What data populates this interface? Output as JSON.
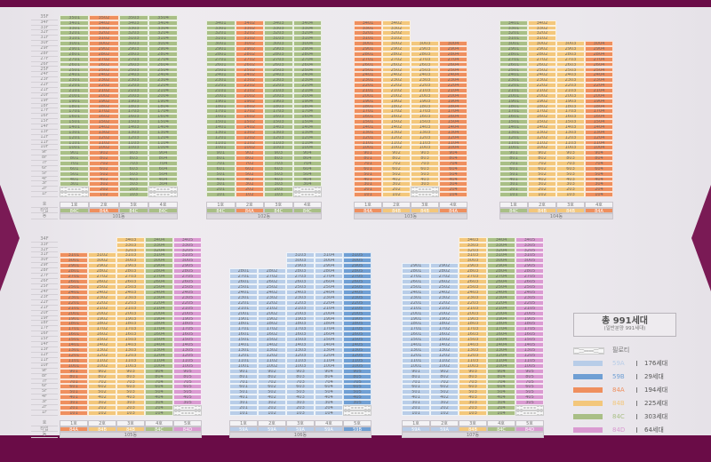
{
  "row_labels": {
    "ho": "호",
    "type": "타입",
    "dong": "동"
  },
  "floor_suffix": "F",
  "unit_suffix": "호",
  "colors": {
    "59A": "#b8cde8",
    "59B": "#6f9fd4",
    "84A": "#ef8f5e",
    "84B": "#f3c77b",
    "84C": "#a9bf86",
    "84D": "#da9ad1",
    "frame": "#6a0c47"
  },
  "buildings": [
    {
      "name": "101동",
      "floor_labels": true,
      "lines": [
        {
          "type": "84C",
          "top_floor": 35,
          "pilotis": [
            1,
            2
          ]
        },
        {
          "type": "84A",
          "top_floor": 35,
          "pilotis": []
        },
        {
          "type": "84C",
          "top_floor": 35,
          "pilotis": []
        },
        {
          "type": "84C",
          "top_floor": 35,
          "pilotis": [
            1,
            2
          ]
        }
      ]
    },
    {
      "name": "102동",
      "floor_labels": false,
      "lines": [
        {
          "type": "84C",
          "top_floor": 34,
          "pilotis": []
        },
        {
          "type": "84A",
          "top_floor": 34,
          "pilotis": []
        },
        {
          "type": "84C",
          "top_floor": 34,
          "pilotis": []
        },
        {
          "type": "84C",
          "top_floor": 34,
          "pilotis": [
            1,
            2
          ]
        }
      ]
    },
    {
      "name": "103동",
      "floor_labels": false,
      "lines": [
        {
          "type": "84A",
          "top_floor": 34,
          "pilotis": []
        },
        {
          "type": "84B",
          "top_floor": 34,
          "pilotis": []
        },
        {
          "type": "84B",
          "top_floor": 30,
          "pilotis": [
            1,
            2
          ]
        },
        {
          "type": "84A",
          "top_floor": 30,
          "pilotis": []
        }
      ]
    },
    {
      "name": "104동",
      "floor_labels": false,
      "lines": [
        {
          "type": "84C",
          "top_floor": 34,
          "pilotis": []
        },
        {
          "type": "84B",
          "top_floor": 34,
          "pilotis": []
        },
        {
          "type": "84B",
          "top_floor": 30,
          "pilotis": []
        },
        {
          "type": "84A",
          "top_floor": 30,
          "pilotis": []
        }
      ]
    },
    {
      "name": "105동",
      "floor_labels": true,
      "lines": [
        {
          "type": "84A",
          "top_floor": 31,
          "pilotis": []
        },
        {
          "type": "84B",
          "top_floor": 31,
          "pilotis": []
        },
        {
          "type": "84B",
          "top_floor": 34,
          "pilotis": []
        },
        {
          "type": "84C",
          "top_floor": 34,
          "pilotis": []
        },
        {
          "type": "84D",
          "top_floor": 34,
          "pilotis": [
            1,
            2
          ]
        }
      ]
    },
    {
      "name": "106동",
      "floor_labels": false,
      "lines": [
        {
          "type": "59A",
          "top_floor": 28,
          "pilotis": []
        },
        {
          "type": "59A",
          "top_floor": 28,
          "pilotis": []
        },
        {
          "type": "59A",
          "top_floor": 31,
          "pilotis": []
        },
        {
          "type": "59A",
          "top_floor": 31,
          "pilotis": []
        },
        {
          "type": "59B",
          "top_floor": 31,
          "pilotis": [
            1,
            2
          ]
        }
      ]
    },
    {
      "name": "107동",
      "floor_labels": false,
      "lines": [
        {
          "type": "59A",
          "top_floor": 29,
          "pilotis": []
        },
        {
          "type": "59A",
          "top_floor": 29,
          "pilotis": []
        },
        {
          "type": "84B",
          "top_floor": 34,
          "pilotis": []
        },
        {
          "type": "84C",
          "top_floor": 34,
          "pilotis": []
        },
        {
          "type": "84D",
          "top_floor": 34,
          "pilotis": [
            1,
            2
          ]
        }
      ]
    }
  ],
  "summary": {
    "title": "총 991세대",
    "subtitle": "(일반분양 991세대)"
  },
  "legend": {
    "pilotis_label": "필로티",
    "items": [
      {
        "type": "59A",
        "count": "176세대"
      },
      {
        "type": "59B",
        "count": "29세대"
      },
      {
        "type": "84A",
        "count": "194세대"
      },
      {
        "type": "84B",
        "count": "225세대"
      },
      {
        "type": "84C",
        "count": "303세대"
      },
      {
        "type": "84D",
        "count": "64세대"
      }
    ]
  }
}
